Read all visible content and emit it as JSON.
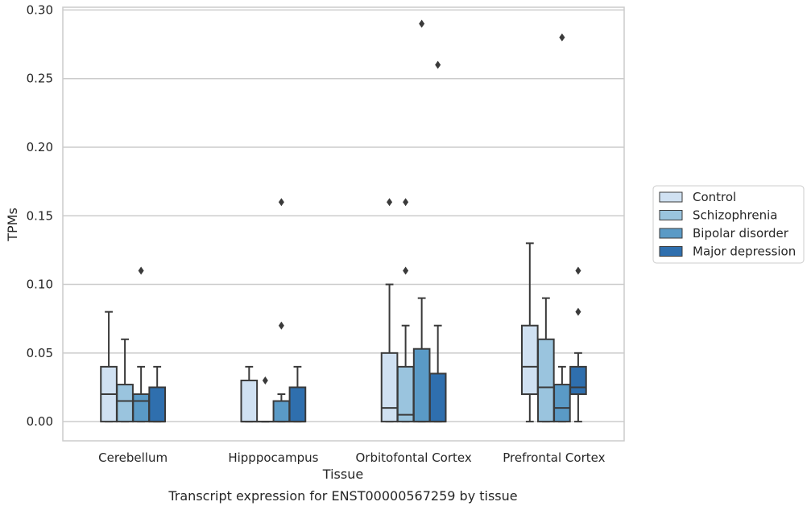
{
  "chart_data": {
    "type": "box",
    "caption": "Transcript expression for ENST00000567259 by tissue",
    "xlabel": "Tissue",
    "ylabel": "TPMs",
    "ylim": [
      -0.014,
      0.302
    ],
    "yticks": [
      0.0,
      0.05,
      0.1,
      0.15,
      0.2,
      0.25,
      0.3
    ],
    "ytick_labels": [
      "0.00",
      "0.05",
      "0.10",
      "0.15",
      "0.20",
      "0.25",
      "0.30"
    ],
    "grid": "horizontal",
    "legend_position": "right",
    "categories": [
      "Cerebellum",
      "Hipppocampus",
      "Orbitofontal Cortex",
      "Prefrontal Cortex"
    ],
    "series": [
      {
        "name": "Control",
        "color": "#d0e1f2",
        "boxes": [
          {
            "whislo": 0.0,
            "q1": 0.0,
            "med": 0.02,
            "q3": 0.04,
            "whishi": 0.08,
            "fliers": []
          },
          {
            "whislo": 0.0,
            "q1": 0.0,
            "med": 0.0,
            "q3": 0.03,
            "whishi": 0.04,
            "fliers": []
          },
          {
            "whislo": 0.0,
            "q1": 0.0,
            "med": 0.01,
            "q3": 0.05,
            "whishi": 0.1,
            "fliers": [
              0.16
            ]
          },
          {
            "whislo": 0.0,
            "q1": 0.02,
            "med": 0.04,
            "q3": 0.07,
            "whishi": 0.13,
            "fliers": []
          }
        ]
      },
      {
        "name": "Schizophrenia",
        "color": "#9ac4de",
        "boxes": [
          {
            "whislo": 0.0,
            "q1": 0.0,
            "med": 0.015,
            "q3": 0.027,
            "whishi": 0.06,
            "fliers": []
          },
          {
            "whislo": 0.0,
            "q1": 0.0,
            "med": 0.0,
            "q3": 0.0,
            "whishi": 0.0,
            "fliers": [
              0.03
            ]
          },
          {
            "whislo": 0.0,
            "q1": 0.0,
            "med": 0.005,
            "q3": 0.04,
            "whishi": 0.07,
            "fliers": [
              0.11,
              0.16
            ]
          },
          {
            "whislo": 0.0,
            "q1": 0.0,
            "med": 0.025,
            "q3": 0.06,
            "whishi": 0.09,
            "fliers": []
          }
        ]
      },
      {
        "name": "Bipolar disorder",
        "color": "#5a9ac6",
        "boxes": [
          {
            "whislo": 0.0,
            "q1": 0.0,
            "med": 0.015,
            "q3": 0.02,
            "whishi": 0.04,
            "fliers": [
              0.11
            ]
          },
          {
            "whislo": 0.0,
            "q1": 0.0,
            "med": 0.0,
            "q3": 0.015,
            "whishi": 0.02,
            "fliers": [
              0.07,
              0.16
            ]
          },
          {
            "whislo": 0.0,
            "q1": 0.0,
            "med": 0.0,
            "q3": 0.053,
            "whishi": 0.09,
            "fliers": [
              0.29
            ]
          },
          {
            "whislo": 0.0,
            "q1": 0.0,
            "med": 0.01,
            "q3": 0.027,
            "whishi": 0.04,
            "fliers": [
              0.28
            ]
          }
        ]
      },
      {
        "name": "Major depression",
        "color": "#2f6fae",
        "boxes": [
          {
            "whislo": 0.0,
            "q1": 0.0,
            "med": 0.0,
            "q3": 0.025,
            "whishi": 0.04,
            "fliers": []
          },
          {
            "whislo": 0.0,
            "q1": 0.0,
            "med": 0.0,
            "q3": 0.025,
            "whishi": 0.04,
            "fliers": []
          },
          {
            "whislo": 0.0,
            "q1": 0.0,
            "med": 0.0,
            "q3": 0.035,
            "whishi": 0.07,
            "fliers": [
              0.26
            ]
          },
          {
            "whislo": 0.0,
            "q1": 0.02,
            "med": 0.025,
            "q3": 0.04,
            "whishi": 0.05,
            "fliers": [
              0.08,
              0.11
            ]
          }
        ]
      }
    ]
  }
}
